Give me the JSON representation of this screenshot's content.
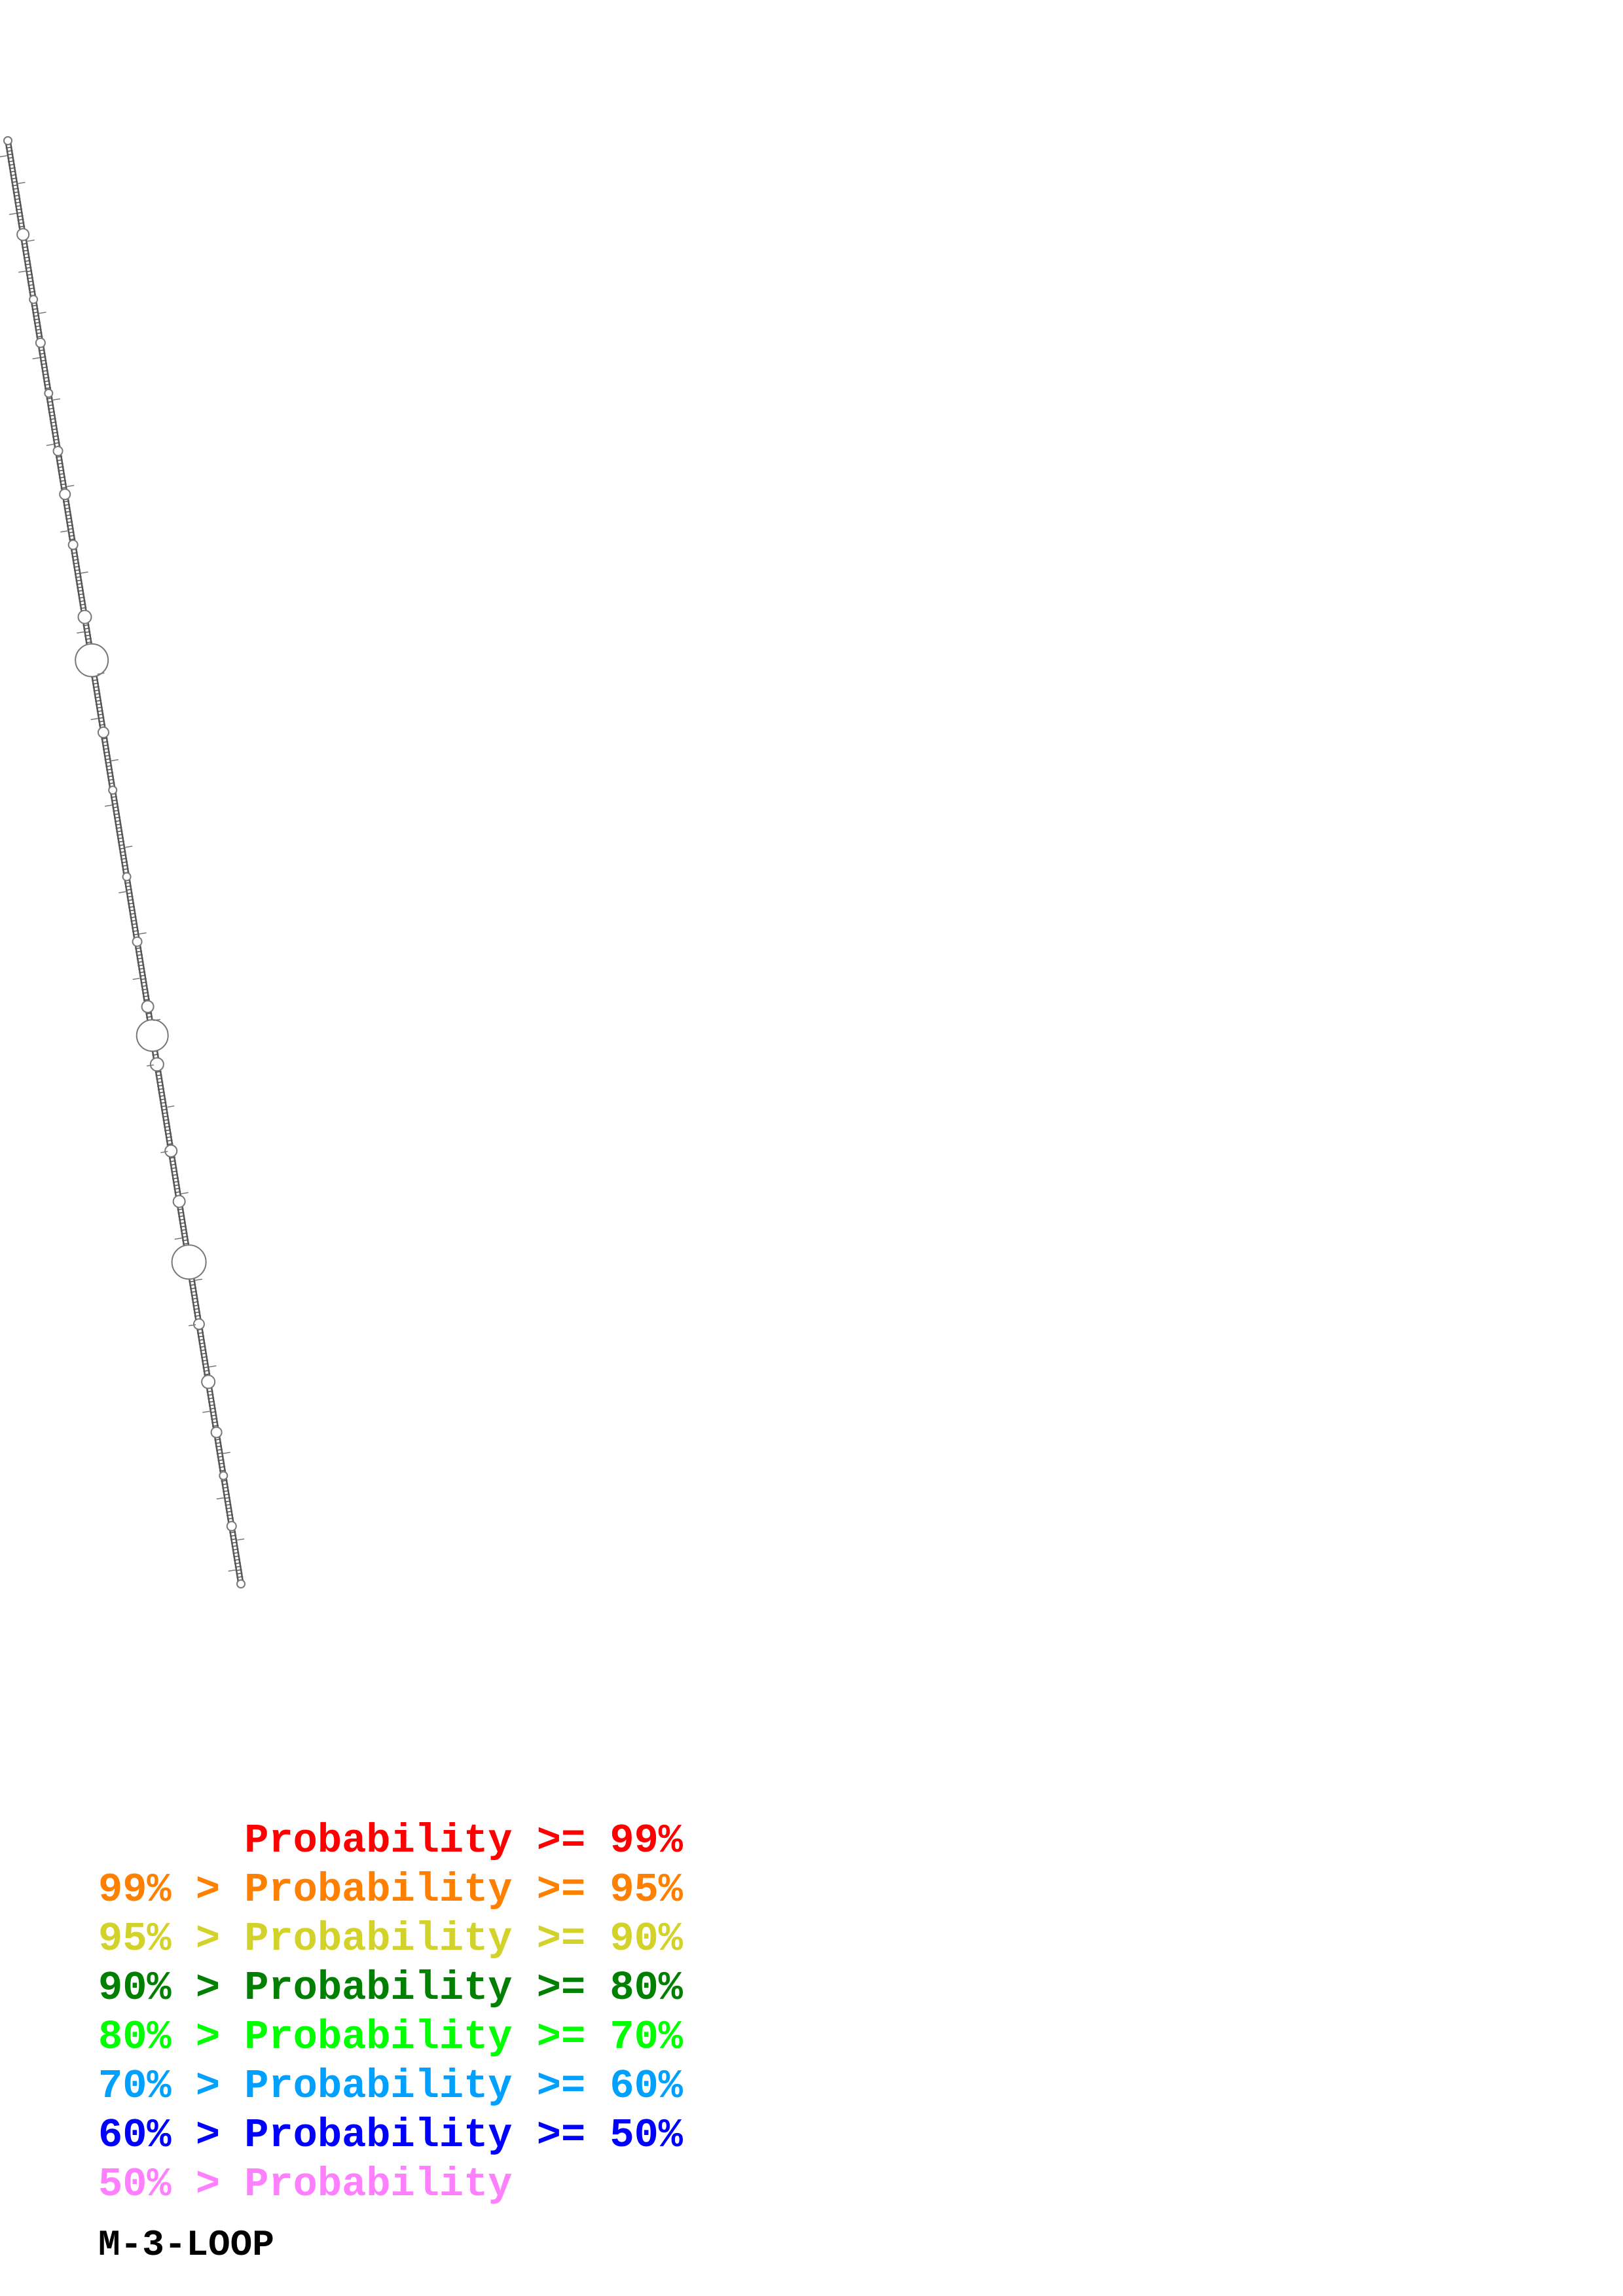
{
  "diagram": {
    "backbone_color": "#555555",
    "loop_color": "#777777"
  },
  "legend": {
    "items": [
      {
        "lower": "",
        "label": "Probability",
        "upper": "99%",
        "color": "#ff0000"
      },
      {
        "lower": "99%",
        "label": "Probability",
        "upper": "95%",
        "color": "#ff8000"
      },
      {
        "lower": "95%",
        "label": "Probability",
        "upper": "90%",
        "color": "#d2d22a"
      },
      {
        "lower": "90%",
        "label": "Probability",
        "upper": "80%",
        "color": "#008000"
      },
      {
        "lower": "80%",
        "label": "Probability",
        "upper": "70%",
        "color": "#00ff00"
      },
      {
        "lower": "70%",
        "label": "Probability",
        "upper": "60%",
        "color": "#00a0ff"
      },
      {
        "lower": "60%",
        "label": "Probability",
        "upper": "50%",
        "color": "#0000ff"
      },
      {
        "lower": "50%",
        "label": "Probability",
        "upper": "",
        "color": "#ff80ff"
      }
    ]
  },
  "structure_name": "M-3-LOOP"
}
